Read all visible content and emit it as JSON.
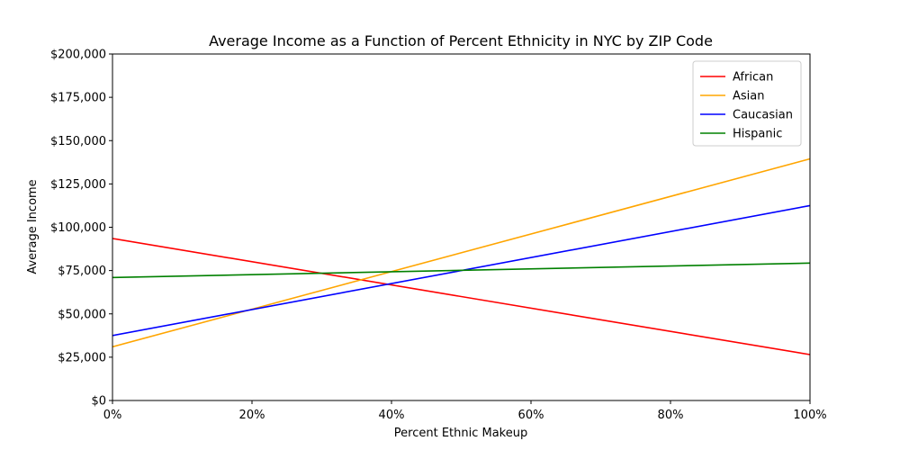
{
  "chart_data": {
    "type": "line",
    "title": "Average Income as a Function of Percent Ethnicity in NYC by ZIP Code",
    "xlabel": "Percent Ethnic Makeup",
    "ylabel": "Average Income",
    "xlim": [
      0,
      100
    ],
    "ylim": [
      0,
      200000
    ],
    "x_ticks": [
      0,
      20,
      40,
      60,
      80,
      100
    ],
    "x_tick_labels": [
      "0%",
      "20%",
      "40%",
      "60%",
      "80%",
      "100%"
    ],
    "y_ticks": [
      0,
      25000,
      50000,
      75000,
      100000,
      125000,
      150000,
      175000,
      200000
    ],
    "y_tick_labels": [
      "$0",
      "$25,000",
      "$50,000",
      "$75,000",
      "$100,000",
      "$125,000",
      "$150,000",
      "$175,000",
      "$200,000"
    ],
    "grid": false,
    "legend_position": "top-right",
    "series": [
      {
        "name": "African",
        "color": "#ff0000",
        "x": [
          0,
          100
        ],
        "y": [
          93500,
          26500
        ]
      },
      {
        "name": "Asian",
        "color": "#ffa500",
        "x": [
          0,
          100
        ],
        "y": [
          31000,
          139500
        ]
      },
      {
        "name": "Caucasian",
        "color": "#0000ff",
        "x": [
          0,
          100
        ],
        "y": [
          37500,
          112500
        ]
      },
      {
        "name": "Hispanic",
        "color": "#008000",
        "x": [
          0,
          100
        ],
        "y": [
          71000,
          79300
        ]
      }
    ]
  }
}
